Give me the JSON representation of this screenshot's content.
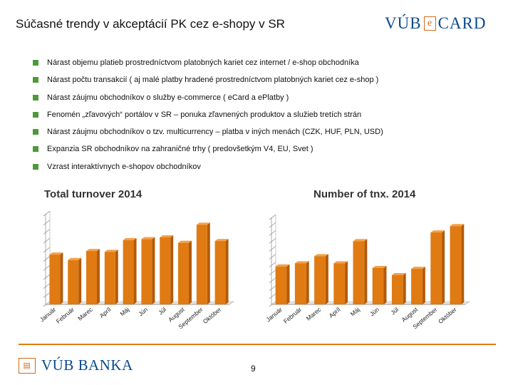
{
  "slide": {
    "title": "Súčasné trendy v akceptácií PK cez e-shopy v SR",
    "page_number": "9",
    "bullet_color": "#4c9a3a",
    "accent_color": "#e07a12"
  },
  "logos": {
    "top_right": {
      "part1": "VÚB",
      "mark": "e",
      "part2": "CARD",
      "color": "#0b4a8c"
    },
    "bottom_left": {
      "text": "VÚB BANKA",
      "mark_icon": "vub-building-icon",
      "color": "#0b4a8c"
    }
  },
  "bullets": [
    "Nárast objemu platieb prostredníctvom platobných kariet cez internet / e-shop obchodníka",
    "Nárast počtu transakcií ( aj malé platby hradené prostredníctvom platobných kariet cez e-shop )",
    "Nárast záujmu obchodníkov o služby e-commerce ( eCard a ePlatby )",
    "Fenomén „zľavových“ portálov v SR – ponuka zľavnených produktov a služieb tretích strán",
    "Nárast záujmu obchodníkov o tzv. multicurrency – platba v iných menách (CZK, HUF, PLN, USD)",
    "Expanzia SR obchodníkov na zahraničné trhy ( predovšetkým V4, EU, Svet )",
    "Vzrast interaktívnych e-shopov obchodníkov"
  ],
  "chart_data": [
    {
      "type": "bar",
      "title": "Total turnover 2014",
      "categories": [
        "Január",
        "Február",
        "Marec",
        "Apríl",
        "Máj",
        "Jún",
        "Júl",
        "August",
        "September",
        "Október"
      ],
      "values": [
        5.5,
        4.9,
        5.9,
        5.8,
        7.1,
        7.2,
        7.4,
        6.8,
        8.8,
        7.0
      ],
      "ylim": [
        0,
        10
      ],
      "grid": false,
      "bar_color": "#e07a12",
      "gridlines": 10
    },
    {
      "type": "bar",
      "title": "Number of tnx. 2014",
      "categories": [
        "Január",
        "Február",
        "Marec",
        "Apríl",
        "Máj",
        "Jún",
        "Júl",
        "August",
        "September",
        "Október"
      ],
      "values": [
        4.8,
        5.2,
        6.1,
        5.2,
        8.0,
        4.6,
        3.7,
        4.5,
        9.1,
        9.9
      ],
      "ylim": [
        0,
        11
      ],
      "grid": false,
      "bar_color": "#e07a12",
      "gridlines": 11
    }
  ]
}
